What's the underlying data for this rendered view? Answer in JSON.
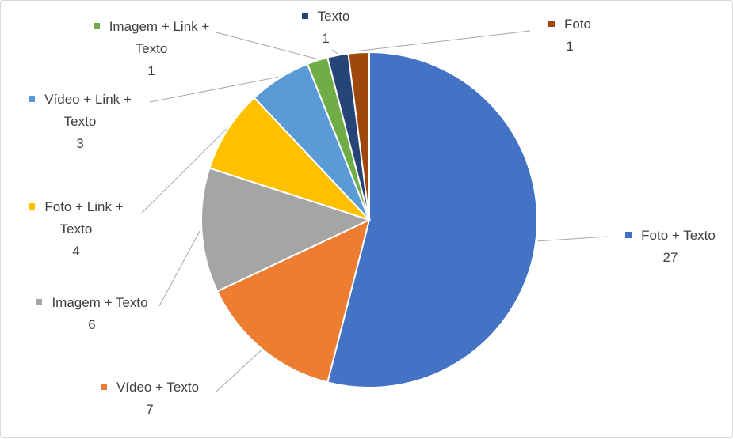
{
  "chart_data": {
    "type": "pie",
    "categories": [
      "Foto + Texto",
      "Vídeo + Texto",
      "Imagem + Texto",
      "Foto + Link + Texto",
      "Vídeo + Link + Texto",
      "Imagem + Link + Texto",
      "Texto",
      "Foto"
    ],
    "values": [
      27,
      7,
      6,
      4,
      3,
      1,
      1,
      1
    ],
    "colors": [
      "#4472c4",
      "#ed7d31",
      "#a5a5a5",
      "#ffc000",
      "#5b9bd5",
      "#70ad47",
      "#264478",
      "#9e480e"
    ]
  }
}
